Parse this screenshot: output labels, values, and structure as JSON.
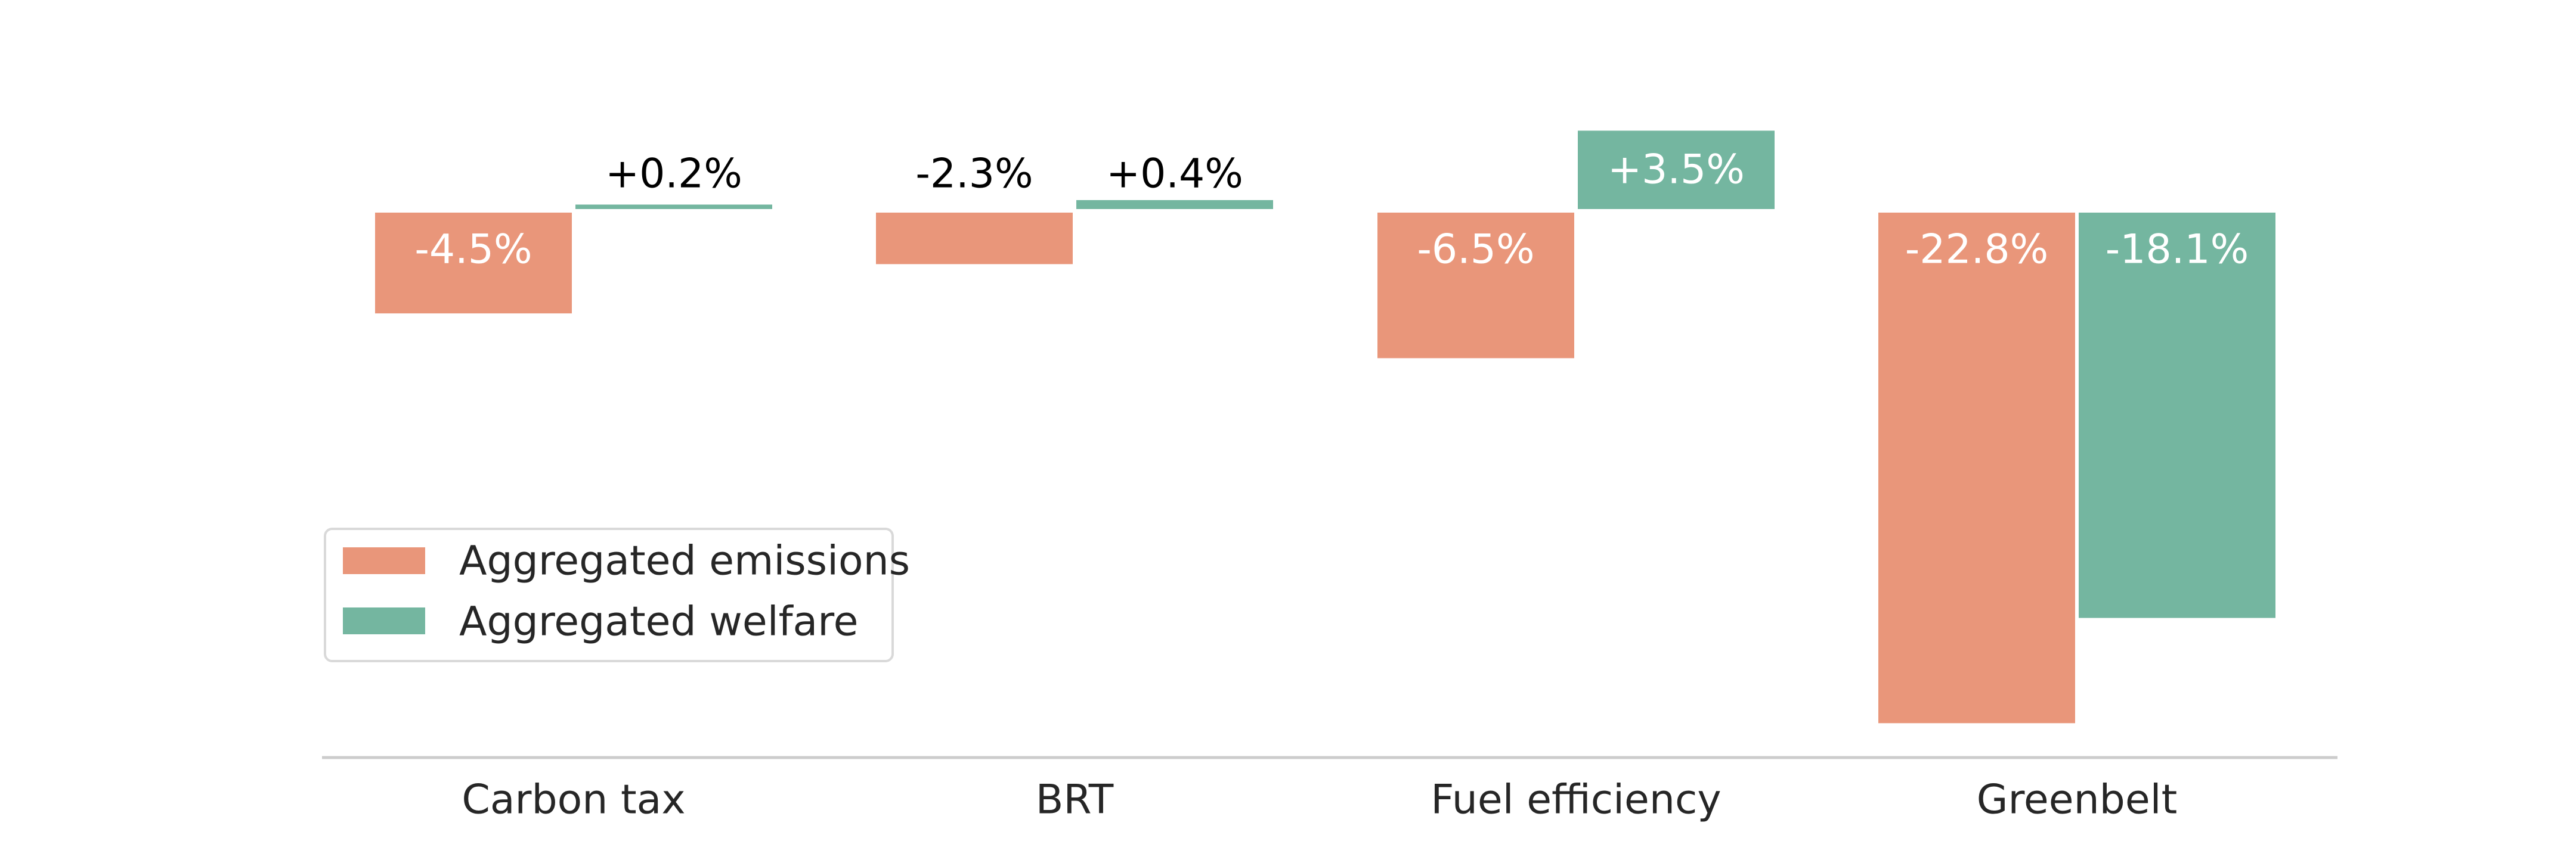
{
  "chart_data": {
    "type": "bar",
    "title": "",
    "xlabel": "",
    "ylabel": "",
    "categories": [
      "Carbon tax",
      "BRT",
      "Fuel efficiency",
      "Greenbelt"
    ],
    "series": [
      {
        "name": "Aggregated emissions",
        "color": "#E9967A",
        "values": [
          -4.5,
          -2.3,
          -6.5,
          -22.8
        ],
        "labels": [
          "-4.5%",
          "-2.3%",
          "-6.5%",
          "-22.8%"
        ]
      },
      {
        "name": "Aggregated welfare",
        "color": "#74B6A0",
        "values": [
          0.2,
          0.4,
          3.5,
          -18.1
        ],
        "labels": [
          "+0.2%",
          "+0.4%",
          "+3.5%",
          "-18.1%"
        ]
      }
    ],
    "ylim": [
      -24.5,
      3.5
    ],
    "grid": false,
    "legend": "lower-left",
    "y_axis_visible": false
  }
}
